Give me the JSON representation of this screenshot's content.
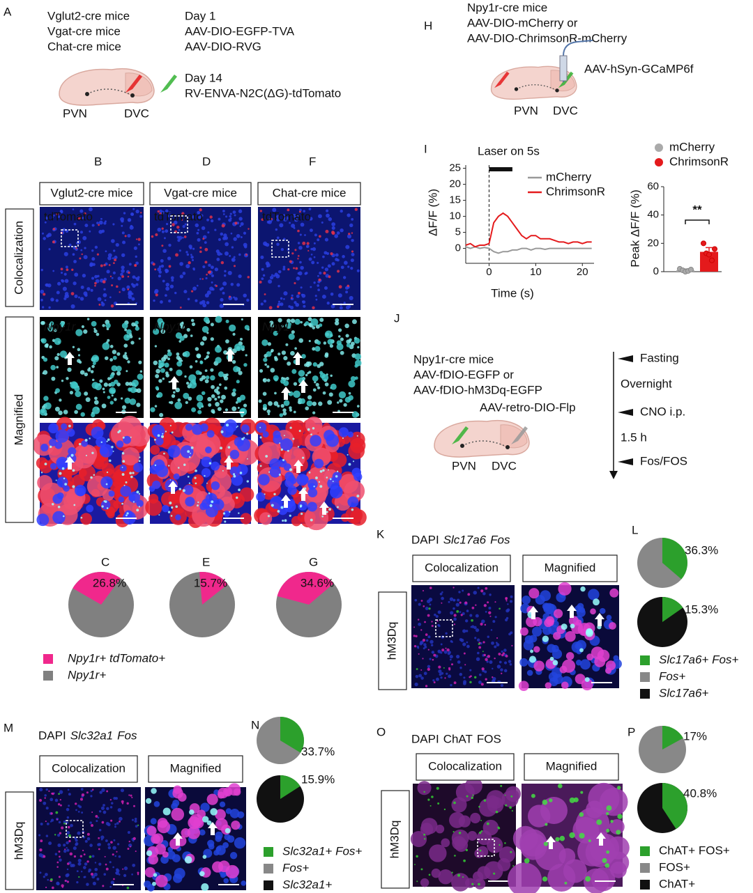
{
  "letters": [
    "A",
    "B",
    "C",
    "D",
    "E",
    "F",
    "G",
    "H",
    "I",
    "J",
    "K",
    "L",
    "M",
    "N",
    "O",
    "P"
  ],
  "A": {
    "mice": [
      "Vglut2-cre mice",
      "Vgat-cre mice",
      "Chat-cre mice"
    ],
    "day1": "Day 1",
    "day1_viruses": [
      "AAV-DIO-EGFP-TVA",
      "AAV-DIO-RVG"
    ],
    "day14": "Day 14",
    "day14_virus": "RV-ENVA-N2C(ΔG)-tdTomato",
    "regions": [
      "PVN",
      "DVC"
    ],
    "colors": {
      "day1": "#33b233",
      "day14": "#e41a1c"
    }
  },
  "H": {
    "lines": [
      "Npy1r-cre mice",
      "AAV-DIO-mCherry or",
      "AAV-DIO-ChrimsonR-mCherry"
    ],
    "virus": "AAV-hSyn-GCaMP6f",
    "virus_color": "#33b233",
    "regions": [
      "PVN",
      "DVC"
    ]
  },
  "BDF": {
    "columns": [
      "Vglut2-cre mice",
      "Vgat-cre mice",
      "Chat-cre mice"
    ],
    "rows": [
      "Colocalization",
      "Magnified"
    ],
    "stains": [
      "tdTomato",
      "Npy1r"
    ],
    "stain_colors": [
      "#e0309a",
      "#40e0d0"
    ]
  },
  "CEG": {
    "pies": [
      {
        "value": 26.8,
        "value_label": "26.8%"
      },
      {
        "value": 15.7,
        "value_label": "15.7%"
      },
      {
        "value": 34.6,
        "value_label": "34.6%"
      }
    ],
    "colors": [
      "#f0288c",
      "#808080"
    ],
    "legend": [
      "Npy1r+ tdTomato+",
      "Npy1r+"
    ]
  },
  "I": {
    "annotation": "Laser on 5s",
    "line_chart": {
      "type": "line",
      "x": [
        -5,
        -4,
        -3,
        -2,
        -1,
        0,
        1,
        2,
        3,
        4,
        5,
        6,
        7,
        8,
        9,
        10,
        11,
        12,
        13,
        14,
        15,
        16,
        17,
        18,
        19,
        20,
        21,
        22
      ],
      "series": [
        {
          "name": "mCherry",
          "color": "#999999",
          "values": [
            0.5,
            0,
            0.5,
            0,
            0.3,
            0,
            -1,
            -1.5,
            -1,
            -1,
            -0.5,
            -0.5,
            0,
            0,
            -0.5,
            0,
            0,
            -0.3,
            0,
            0,
            0,
            0,
            0,
            0,
            0,
            0,
            0,
            0
          ]
        },
        {
          "name": "ChrimsonR",
          "color": "#e41a1c",
          "values": [
            1,
            1.5,
            0.5,
            1,
            1,
            1.5,
            8,
            10,
            11,
            10,
            8,
            6,
            4,
            3,
            4,
            4,
            3,
            3,
            3,
            2.5,
            2,
            2,
            1.5,
            2,
            2,
            1.5,
            2,
            2
          ]
        }
      ],
      "xlim": [
        -5,
        22.5
      ],
      "ylim": [
        -4,
        26
      ],
      "xticks": [
        0,
        10,
        20
      ],
      "yticks": [
        0,
        5,
        10,
        15,
        20,
        25
      ],
      "xlabel": "Time (s)",
      "ylabel": "ΔF/F (%)",
      "laser": [
        0,
        5
      ]
    },
    "bar_chart": {
      "type": "bar",
      "categories": [
        "mCherry",
        "ChrimsonR"
      ],
      "colors": [
        "#aaaaaa",
        "#e41a1c"
      ],
      "values": [
        1,
        14
      ],
      "errors": [
        1,
        3
      ],
      "points": [
        [
          2,
          1,
          0,
          0.5,
          1.5
        ],
        [
          20,
          13,
          12,
          8,
          16
        ]
      ],
      "ylim": [
        0,
        60
      ],
      "yticks": [
        0,
        20,
        40,
        60
      ],
      "ylabel": "Peak ΔF/F (%)",
      "significance": "**"
    }
  },
  "J": {
    "lines": [
      "Npy1r-cre mice",
      "AAV-fDIO-EGFP or",
      "AAV-fDIO-hM3Dq-EGFP"
    ],
    "retro": "AAV-retro-DIO-Flp",
    "regions": [
      "PVN",
      "DVC"
    ],
    "steps": [
      "Fasting",
      "Overnight",
      "CNO i.p.",
      "1.5 h",
      "Fos/FOS"
    ]
  },
  "K": {
    "stains": [
      "DAPI",
      "Slc17a6",
      "Fos"
    ],
    "boxes": [
      "Colocalization",
      "Magnified"
    ],
    "condition": "hM3Dq"
  },
  "L": {
    "pies": [
      {
        "value": 36.3,
        "value_label": "36.3%"
      },
      {
        "value": 15.3,
        "value_label": "15.3%"
      }
    ],
    "colors": [
      "#2ca02c",
      "#888888",
      "#111111"
    ],
    "legend": [
      "Slc17a6+ Fos+",
      "Fos+",
      "Slc17a6+"
    ]
  },
  "M": {
    "stains": [
      "DAPI",
      "Slc32a1",
      "Fos"
    ],
    "boxes": [
      "Colocalization",
      "Magnified"
    ],
    "condition": "hM3Dq"
  },
  "N": {
    "pies": [
      {
        "value": 33.7,
        "value_label": "33.7%"
      },
      {
        "value": 15.9,
        "value_label": "15.9%"
      }
    ],
    "colors": [
      "#2ca02c",
      "#888888",
      "#111111"
    ],
    "legend": [
      "Slc32a1+ Fos+",
      "Fos+",
      "Slc32a1+"
    ]
  },
  "O": {
    "stains": [
      "DAPI",
      "ChAT",
      "FOS"
    ],
    "boxes": [
      "Colocalization",
      "Magnified"
    ],
    "condition": "hM3Dq"
  },
  "P": {
    "pies": [
      {
        "value": 17,
        "value_label": "17%"
      },
      {
        "value": 40.8,
        "value_label": "40.8%"
      }
    ],
    "colors": [
      "#2ca02c",
      "#888888",
      "#111111"
    ],
    "legend": [
      "ChAT+ FOS+",
      "FOS+",
      "ChAT+"
    ]
  }
}
